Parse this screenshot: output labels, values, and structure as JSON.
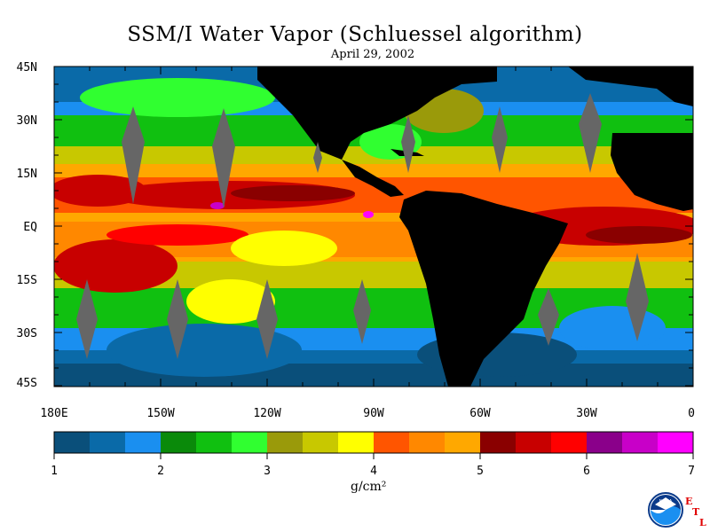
{
  "title": "SSM/I Water Vapor (Schluessel algorithm)",
  "date": "April 29, 2002",
  "lat_labels": [
    "45N",
    "30N",
    "15N",
    "EQ",
    "15S",
    "30S",
    "45S"
  ],
  "lon_labels": [
    "180E",
    "150W",
    "120W",
    "90W",
    "60W",
    "30W",
    "0"
  ],
  "colorbar": {
    "ticks": [
      "1",
      "2",
      "3",
      "4",
      "5",
      "6",
      "7"
    ],
    "units": "g/cm²",
    "colors": [
      "#0a4f7a",
      "#0a6aa8",
      "#1a8ff0",
      "#0a8a0a",
      "#10c010",
      "#30ff30",
      "#9a9a0a",
      "#c8c800",
      "#ffff00",
      "#ff5500",
      "#ff8800",
      "#ffa800",
      "#8a0000",
      "#c80000",
      "#ff0000",
      "#8a008a",
      "#c800c8",
      "#ff00ff"
    ]
  },
  "logo": {
    "text": "NOAA",
    "letters": [
      "E",
      "T",
      "L"
    ]
  }
}
